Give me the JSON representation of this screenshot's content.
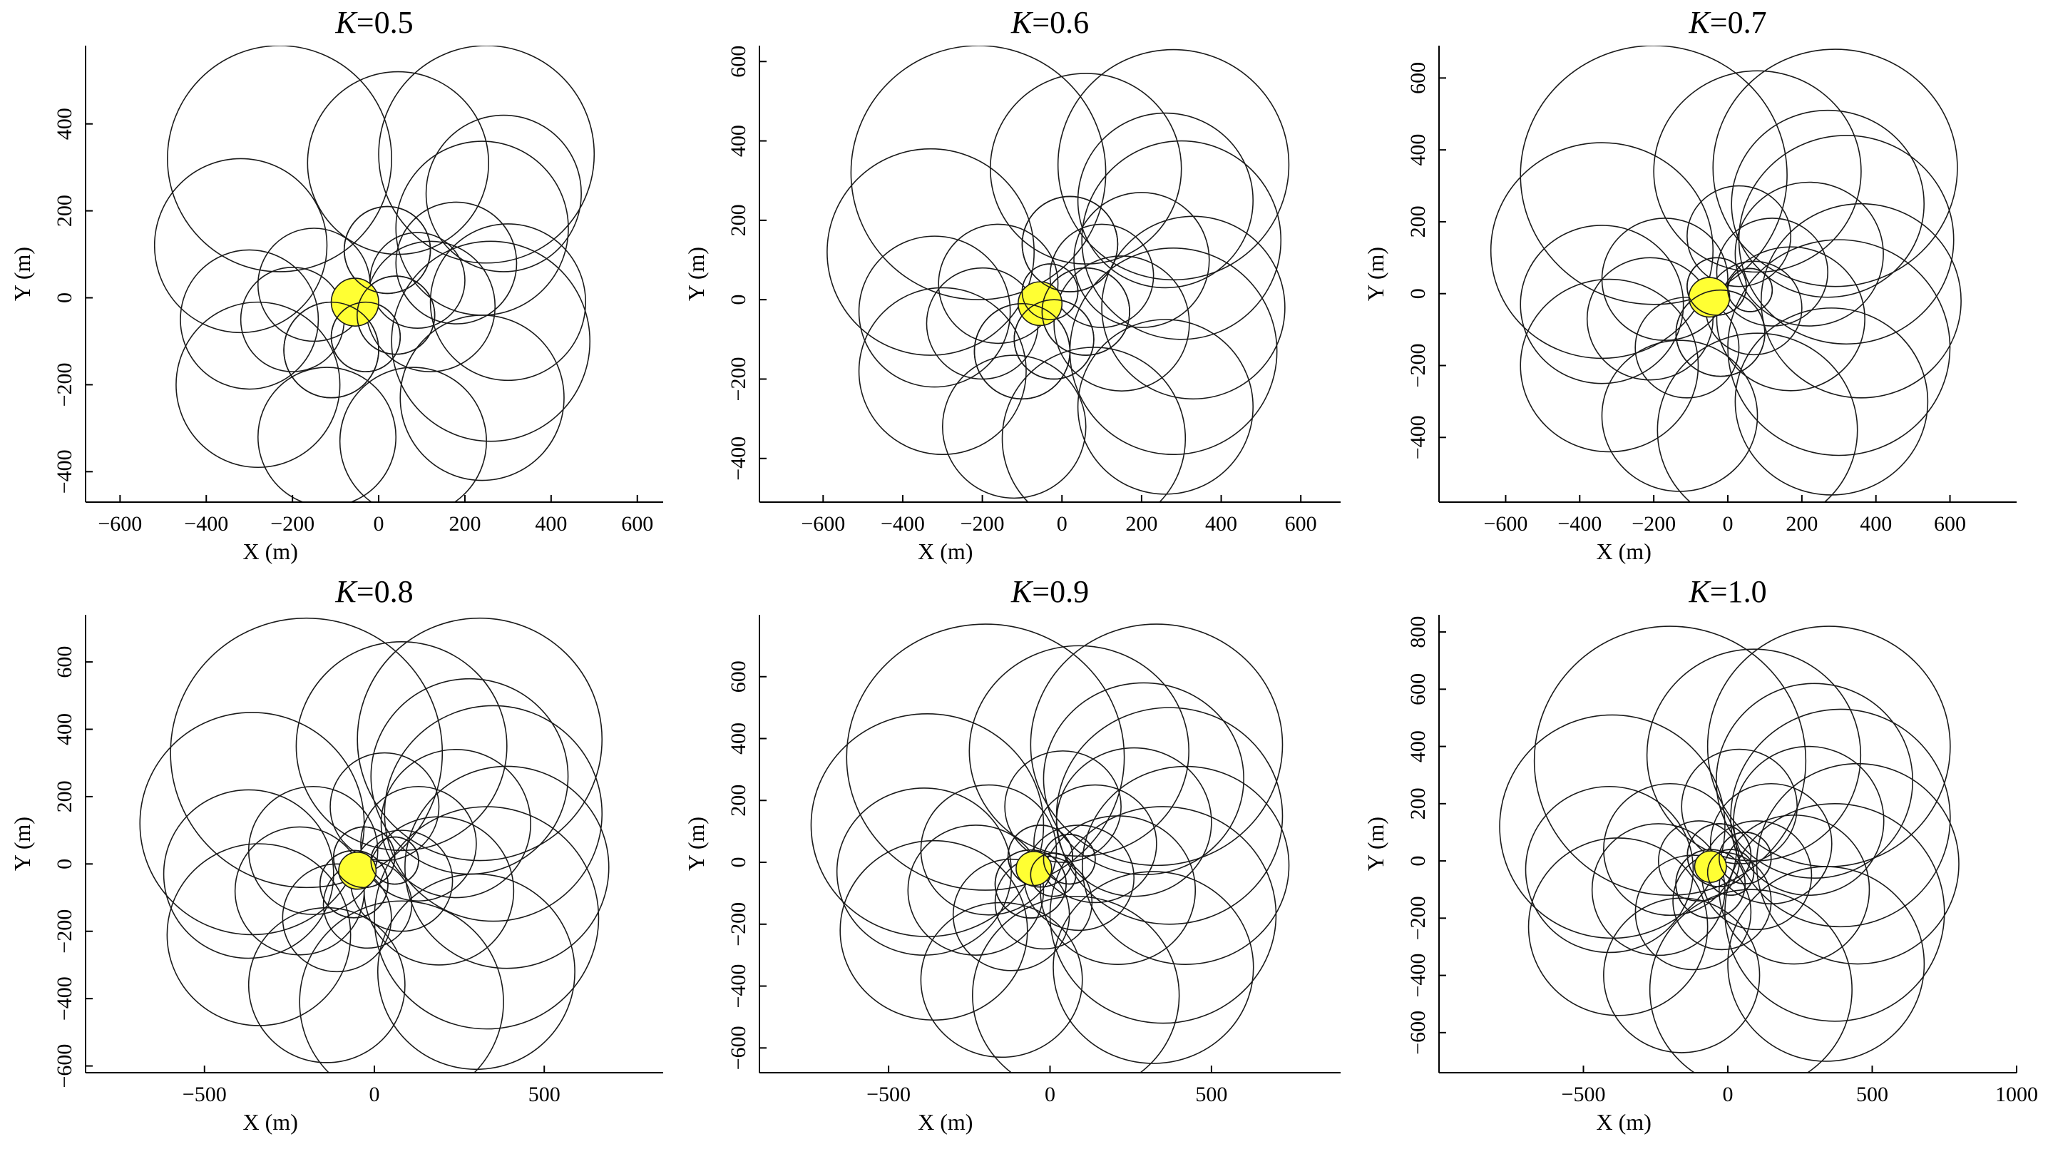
{
  "chart_data": [
    {
      "type": "scatter",
      "title_var": "K",
      "title_value": "=0.5",
      "xlabel": "X (m)",
      "ylabel": "Y (m)",
      "xlim": [
        -680,
        660
      ],
      "ylim": [
        -470,
        580
      ],
      "xticks": [
        -600,
        -400,
        -200,
        0,
        200,
        400,
        600
      ],
      "yticks": [
        -400,
        -200,
        0,
        200,
        400
      ],
      "grid": false,
      "center_marker": {
        "x": -55,
        "y": -10,
        "r": 55,
        "color": "#ffff33"
      },
      "circles": [
        {
          "x": -230,
          "y": 320,
          "r": 260
        },
        {
          "x": 45,
          "y": 310,
          "r": 210
        },
        {
          "x": 250,
          "y": 330,
          "r": 250
        },
        {
          "x": 290,
          "y": 240,
          "r": 180
        },
        {
          "x": 240,
          "y": 160,
          "r": 200
        },
        {
          "x": -320,
          "y": 120,
          "r": 200
        },
        {
          "x": 300,
          "y": -10,
          "r": 180
        },
        {
          "x": 260,
          "y": -100,
          "r": 230
        },
        {
          "x": 240,
          "y": -230,
          "r": 190
        },
        {
          "x": 80,
          "y": -330,
          "r": 170
        },
        {
          "x": -120,
          "y": -320,
          "r": 160
        },
        {
          "x": -280,
          "y": -200,
          "r": 190
        },
        {
          "x": -300,
          "y": -50,
          "r": 160
        },
        {
          "x": -200,
          "y": -50,
          "r": 120
        },
        {
          "x": -110,
          "y": -120,
          "r": 110
        },
        {
          "x": -30,
          "y": -90,
          "r": 80
        },
        {
          "x": 40,
          "y": -40,
          "r": 90
        },
        {
          "x": 90,
          "y": 40,
          "r": 110
        },
        {
          "x": 20,
          "y": 110,
          "r": 100
        },
        {
          "x": 120,
          "y": -20,
          "r": 150
        },
        {
          "x": -150,
          "y": 30,
          "r": 130
        },
        {
          "x": 180,
          "y": 80,
          "r": 140
        }
      ]
    },
    {
      "type": "scatter",
      "title_var": "K",
      "title_value": "=0.6",
      "xlabel": "X (m)",
      "ylabel": "Y (m)",
      "xlim": [
        -760,
        700
      ],
      "ylim": [
        -510,
        640
      ],
      "xticks": [
        -600,
        -400,
        -200,
        0,
        200,
        400,
        600
      ],
      "yticks": [
        -400,
        -200,
        0,
        200,
        400,
        600
      ],
      "grid": false,
      "center_marker": {
        "x": -55,
        "y": -10,
        "r": 55,
        "color": "#ffff33"
      },
      "circles": [
        {
          "x": -210,
          "y": 320,
          "r": 320
        },
        {
          "x": 60,
          "y": 330,
          "r": 240
        },
        {
          "x": 280,
          "y": 340,
          "r": 290
        },
        {
          "x": 260,
          "y": 250,
          "r": 220
        },
        {
          "x": 300,
          "y": 150,
          "r": 250
        },
        {
          "x": -330,
          "y": 120,
          "r": 260
        },
        {
          "x": 330,
          "y": -20,
          "r": 230
        },
        {
          "x": 280,
          "y": -130,
          "r": 260
        },
        {
          "x": 260,
          "y": -270,
          "r": 220
        },
        {
          "x": 80,
          "y": -350,
          "r": 230
        },
        {
          "x": -120,
          "y": -320,
          "r": 180
        },
        {
          "x": -300,
          "y": -180,
          "r": 210
        },
        {
          "x": -320,
          "y": -30,
          "r": 190
        },
        {
          "x": -200,
          "y": -60,
          "r": 140
        },
        {
          "x": -100,
          "y": -130,
          "r": 120
        },
        {
          "x": -20,
          "y": -100,
          "r": 100
        },
        {
          "x": 60,
          "y": -30,
          "r": 110
        },
        {
          "x": 100,
          "y": 60,
          "r": 130
        },
        {
          "x": 20,
          "y": 140,
          "r": 120
        },
        {
          "x": 150,
          "y": -60,
          "r": 170
        },
        {
          "x": -160,
          "y": 40,
          "r": 150
        },
        {
          "x": 200,
          "y": 100,
          "r": 170
        },
        {
          "x": -30,
          "y": 20,
          "r": 70
        }
      ]
    },
    {
      "type": "scatter",
      "title_var": "K",
      "title_value": "=0.7",
      "xlabel": "X (m)",
      "ylabel": "Y (m)",
      "xlim": [
        -780,
        780
      ],
      "ylim": [
        -580,
        690
      ],
      "xticks": [
        -600,
        -400,
        -200,
        0,
        200,
        400,
        600
      ],
      "yticks": [
        -400,
        -200,
        0,
        200,
        400,
        600
      ],
      "grid": false,
      "center_marker": {
        "x": -50,
        "y": -10,
        "r": 55,
        "color": "#ffff33"
      },
      "circles": [
        {
          "x": -200,
          "y": 330,
          "r": 360
        },
        {
          "x": 80,
          "y": 340,
          "r": 280
        },
        {
          "x": 290,
          "y": 350,
          "r": 330
        },
        {
          "x": 270,
          "y": 250,
          "r": 260
        },
        {
          "x": 320,
          "y": 150,
          "r": 290
        },
        {
          "x": -340,
          "y": 120,
          "r": 300
        },
        {
          "x": 360,
          "y": -20,
          "r": 270
        },
        {
          "x": 300,
          "y": -150,
          "r": 300
        },
        {
          "x": 280,
          "y": -300,
          "r": 260
        },
        {
          "x": 80,
          "y": -380,
          "r": 270
        },
        {
          "x": -130,
          "y": -340,
          "r": 210
        },
        {
          "x": -320,
          "y": -200,
          "r": 240
        },
        {
          "x": -340,
          "y": -30,
          "r": 220
        },
        {
          "x": -210,
          "y": -70,
          "r": 170
        },
        {
          "x": -110,
          "y": -150,
          "r": 140
        },
        {
          "x": -20,
          "y": -110,
          "r": 120
        },
        {
          "x": 70,
          "y": -40,
          "r": 130
        },
        {
          "x": 120,
          "y": 60,
          "r": 150
        },
        {
          "x": 30,
          "y": 160,
          "r": 140
        },
        {
          "x": 170,
          "y": -70,
          "r": 200
        },
        {
          "x": -170,
          "y": 40,
          "r": 170
        },
        {
          "x": 220,
          "y": 110,
          "r": 200
        },
        {
          "x": -30,
          "y": 20,
          "r": 80
        },
        {
          "x": 60,
          "y": 10,
          "r": 60
        }
      ]
    },
    {
      "type": "scatter",
      "title_var": "K",
      "title_value": "=0.8",
      "xlabel": "X (m)",
      "ylabel": "Y (m)",
      "xlim": [
        -850,
        850
      ],
      "ylim": [
        -620,
        740
      ],
      "xticks": [
        -500,
        0,
        500
      ],
      "yticks": [
        -600,
        -400,
        -200,
        0,
        200,
        400,
        600
      ],
      "grid": false,
      "center_marker": {
        "x": -50,
        "y": -20,
        "r": 55,
        "color": "#ffff33"
      },
      "circles": [
        {
          "x": -200,
          "y": 330,
          "r": 400
        },
        {
          "x": 80,
          "y": 350,
          "r": 310
        },
        {
          "x": 310,
          "y": 370,
          "r": 360
        },
        {
          "x": 280,
          "y": 260,
          "r": 290
        },
        {
          "x": 350,
          "y": 150,
          "r": 320
        },
        {
          "x": -360,
          "y": 120,
          "r": 330
        },
        {
          "x": 390,
          "y": -10,
          "r": 300
        },
        {
          "x": 330,
          "y": -160,
          "r": 330
        },
        {
          "x": 300,
          "y": -320,
          "r": 290
        },
        {
          "x": 80,
          "y": -410,
          "r": 300
        },
        {
          "x": -140,
          "y": -360,
          "r": 230
        },
        {
          "x": -340,
          "y": -210,
          "r": 270
        },
        {
          "x": -370,
          "y": -30,
          "r": 250
        },
        {
          "x": -220,
          "y": -80,
          "r": 190
        },
        {
          "x": -110,
          "y": -160,
          "r": 160
        },
        {
          "x": -20,
          "y": -120,
          "r": 130
        },
        {
          "x": 80,
          "y": -50,
          "r": 150
        },
        {
          "x": 130,
          "y": 60,
          "r": 170
        },
        {
          "x": 30,
          "y": 170,
          "r": 160
        },
        {
          "x": 190,
          "y": -80,
          "r": 220
        },
        {
          "x": -180,
          "y": 40,
          "r": 190
        },
        {
          "x": 240,
          "y": 120,
          "r": 220
        },
        {
          "x": -30,
          "y": 20,
          "r": 90
        },
        {
          "x": 60,
          "y": 10,
          "r": 70
        },
        {
          "x": -60,
          "y": -60,
          "r": 100
        }
      ]
    },
    {
      "type": "scatter",
      "title_var": "K",
      "title_value": "=0.9",
      "xlabel": "X (m)",
      "ylabel": "Y (m)",
      "xlim": [
        -900,
        900
      ],
      "ylim": [
        -680,
        800
      ],
      "xticks": [
        -500,
        0,
        500
      ],
      "yticks": [
        -600,
        -400,
        -200,
        0,
        200,
        400,
        600
      ],
      "grid": false,
      "center_marker": {
        "x": -50,
        "y": -20,
        "r": 55,
        "color": "#ffff33"
      },
      "circles": [
        {
          "x": -200,
          "y": 340,
          "r": 430
        },
        {
          "x": 90,
          "y": 360,
          "r": 340
        },
        {
          "x": 330,
          "y": 380,
          "r": 390
        },
        {
          "x": 290,
          "y": 270,
          "r": 310
        },
        {
          "x": 370,
          "y": 150,
          "r": 350
        },
        {
          "x": -380,
          "y": 120,
          "r": 360
        },
        {
          "x": 420,
          "y": -10,
          "r": 320
        },
        {
          "x": 350,
          "y": -170,
          "r": 350
        },
        {
          "x": 320,
          "y": -340,
          "r": 310
        },
        {
          "x": 80,
          "y": -430,
          "r": 320
        },
        {
          "x": -150,
          "y": -380,
          "r": 250
        },
        {
          "x": -360,
          "y": -220,
          "r": 290
        },
        {
          "x": -390,
          "y": -30,
          "r": 270
        },
        {
          "x": -230,
          "y": -90,
          "r": 210
        },
        {
          "x": -120,
          "y": -170,
          "r": 180
        },
        {
          "x": -20,
          "y": -130,
          "r": 150
        },
        {
          "x": 90,
          "y": -50,
          "r": 170
        },
        {
          "x": 140,
          "y": 60,
          "r": 190
        },
        {
          "x": 40,
          "y": 180,
          "r": 180
        },
        {
          "x": 210,
          "y": -90,
          "r": 240
        },
        {
          "x": -190,
          "y": 40,
          "r": 210
        },
        {
          "x": 260,
          "y": 130,
          "r": 240
        },
        {
          "x": -30,
          "y": 20,
          "r": 100
        },
        {
          "x": 60,
          "y": 10,
          "r": 80
        },
        {
          "x": -60,
          "y": -70,
          "r": 110
        },
        {
          "x": 10,
          "y": -40,
          "r": 70
        }
      ]
    },
    {
      "type": "scatter",
      "title_var": "K",
      "title_value": "=1.0",
      "xlabel": "X (m)",
      "ylabel": "Y (m)",
      "xlim": [
        -1000,
        1000
      ],
      "ylim": [
        -740,
        860
      ],
      "xticks": [
        -500,
        0,
        500,
        1000
      ],
      "yticks": [
        -600,
        -400,
        -200,
        0,
        200,
        400,
        600,
        800
      ],
      "grid": false,
      "center_marker": {
        "x": -60,
        "y": -20,
        "r": 55,
        "color": "#ffff33"
      },
      "circles": [
        {
          "x": -200,
          "y": 350,
          "r": 470
        },
        {
          "x": 90,
          "y": 370,
          "r": 370
        },
        {
          "x": 350,
          "y": 400,
          "r": 420
        },
        {
          "x": 300,
          "y": 280,
          "r": 340
        },
        {
          "x": 390,
          "y": 150,
          "r": 380
        },
        {
          "x": -400,
          "y": 120,
          "r": 390
        },
        {
          "x": 450,
          "y": -10,
          "r": 350
        },
        {
          "x": 370,
          "y": -180,
          "r": 380
        },
        {
          "x": 340,
          "y": -360,
          "r": 340
        },
        {
          "x": 80,
          "y": -450,
          "r": 350
        },
        {
          "x": -160,
          "y": -400,
          "r": 270
        },
        {
          "x": -380,
          "y": -230,
          "r": 310
        },
        {
          "x": -410,
          "y": -30,
          "r": 290
        },
        {
          "x": -240,
          "y": -100,
          "r": 230
        },
        {
          "x": -120,
          "y": -180,
          "r": 200
        },
        {
          "x": -20,
          "y": -140,
          "r": 170
        },
        {
          "x": 100,
          "y": -50,
          "r": 190
        },
        {
          "x": 150,
          "y": 60,
          "r": 210
        },
        {
          "x": 40,
          "y": 190,
          "r": 200
        },
        {
          "x": 230,
          "y": -100,
          "r": 260
        },
        {
          "x": -200,
          "y": 40,
          "r": 230
        },
        {
          "x": 280,
          "y": 140,
          "r": 260
        },
        {
          "x": -30,
          "y": 20,
          "r": 110
        },
        {
          "x": 60,
          "y": 10,
          "r": 90
        },
        {
          "x": -60,
          "y": -80,
          "r": 120
        },
        {
          "x": 10,
          "y": -40,
          "r": 80
        },
        {
          "x": -100,
          "y": 0,
          "r": 140
        }
      ]
    }
  ]
}
